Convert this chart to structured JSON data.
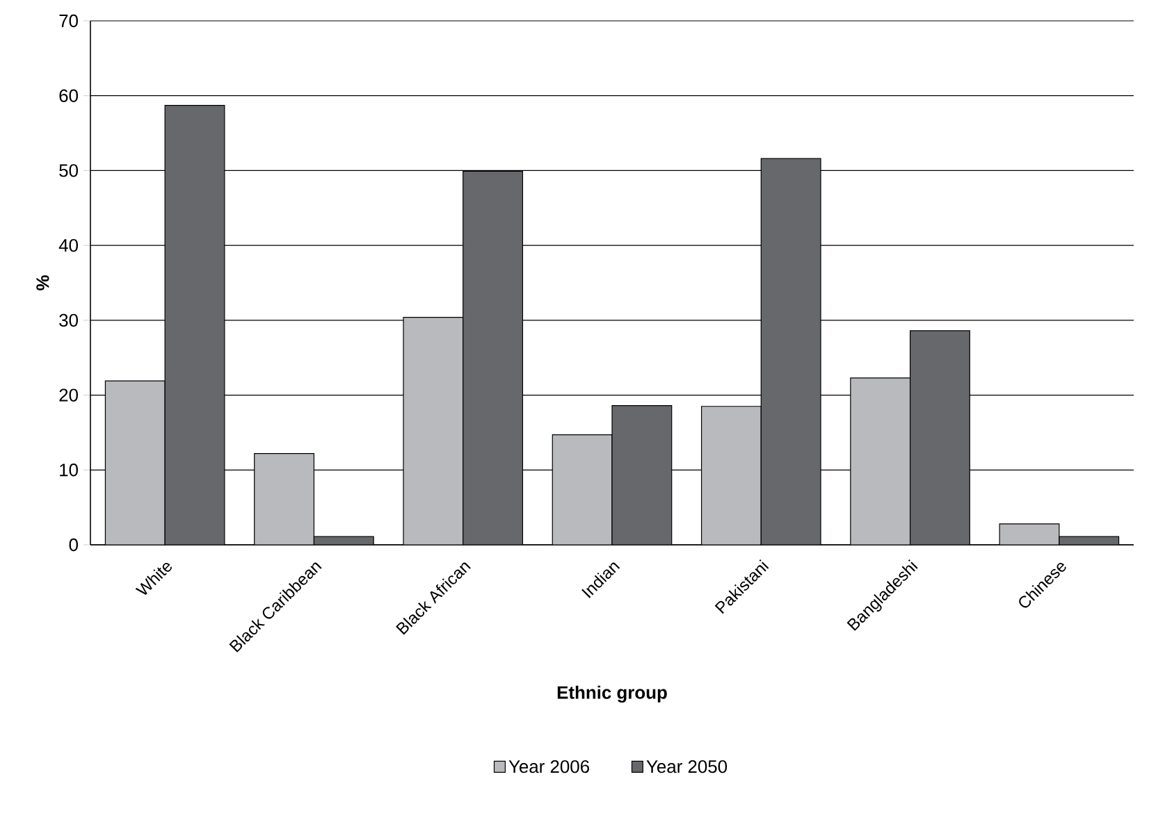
{
  "chart_data": {
    "type": "bar",
    "xlabel": "Ethnic group",
    "ylabel": "%",
    "categories": [
      "White",
      "Black Caribbean",
      "Black African",
      "Indian",
      "Pakistani",
      "Bangladeshi",
      "Chinese"
    ],
    "series": [
      {
        "name": "Year 2006",
        "color": "#b9babd",
        "values": [
          21.9,
          12.2,
          30.4,
          14.7,
          18.5,
          22.3,
          2.8
        ]
      },
      {
        "name": "Year 2050",
        "color": "#67686c",
        "values": [
          58.7,
          1.1,
          49.9,
          18.6,
          51.6,
          28.6,
          1.1
        ]
      }
    ],
    "ylim": [
      0,
      70
    ],
    "yticks": [
      0,
      10,
      20,
      30,
      40,
      50,
      60,
      70
    ],
    "grid": "y",
    "legend": "bottom"
  }
}
